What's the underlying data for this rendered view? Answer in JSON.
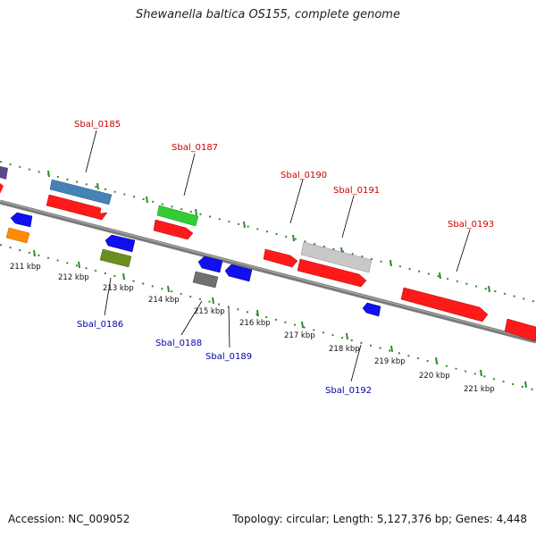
{
  "title": "Shewanella baltica OS155, complete genome",
  "footer": {
    "accession": "Accession: NC_009052",
    "summary": "Topology: circular; Length: 5,127,376 bp; Genes: 4,448"
  },
  "colors": {
    "backbone": "#808080",
    "tick": "#2e8b2e",
    "forward_label": "#cc0000",
    "reverse_label": "#0000aa"
  },
  "scale_labels": [
    "211 kbp",
    "212 kbp",
    "213 kbp",
    "214 kbp",
    "215 kbp",
    "216 kbp",
    "217 kbp",
    "218 kbp",
    "219 kbp",
    "220 kbp",
    "221 kbp"
  ],
  "gene_labels": {
    "sbal_0185": "Sbal_0185",
    "sbal_0186": "Sbal_0186",
    "sbal_0187": "Sbal_0187",
    "sbal_0188": "Sbal_0188",
    "sbal_0189": "Sbal_0189",
    "sbal_0190": "Sbal_0190",
    "sbal_0191": "Sbal_0191",
    "sbal_0192": "Sbal_0192",
    "sbal_0193": "Sbal_0193"
  }
}
